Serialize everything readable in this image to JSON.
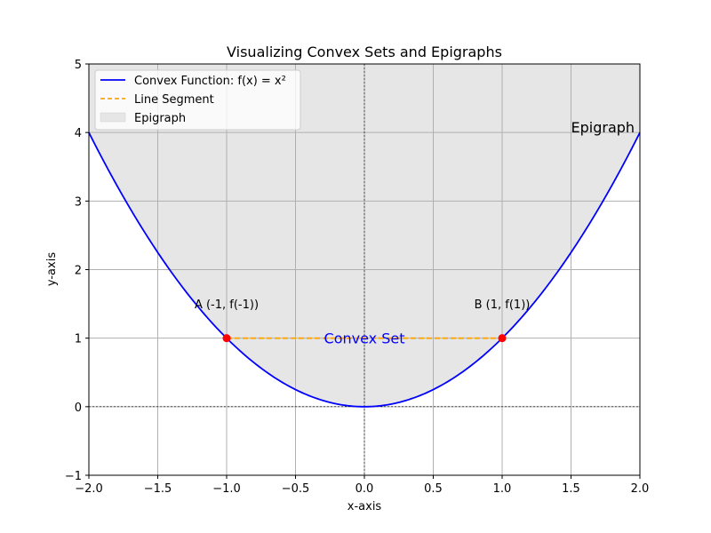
{
  "chart_data": {
    "type": "line",
    "title": "Visualizing Convex Sets and Epigraphs",
    "xlabel": "x-axis",
    "ylabel": "y-axis",
    "xlim": [
      -2,
      2
    ],
    "ylim": [
      -1,
      5
    ],
    "xticks": [
      -2.0,
      -1.5,
      -1.0,
      -0.5,
      0.0,
      0.5,
      1.0,
      1.5,
      2.0
    ],
    "xtick_labels": [
      "−2.0",
      "−1.5",
      "−1.0",
      "−0.5",
      "0.0",
      "0.5",
      "1.0",
      "1.5",
      "2.0"
    ],
    "yticks": [
      -1,
      0,
      1,
      2,
      3,
      4,
      5
    ],
    "ytick_labels": [
      "−1",
      "0",
      "1",
      "2",
      "3",
      "4",
      "5"
    ],
    "grid": true,
    "legend_position": "top-left",
    "series": [
      {
        "name": "Convex Function: f(x) = x²",
        "kind": "function",
        "formula": "x^2",
        "x_range": [
          -2,
          2
        ],
        "color": "#0000ff",
        "style": "solid"
      },
      {
        "name": "Line Segment",
        "kind": "segment",
        "x": [
          -1,
          1
        ],
        "y": [
          1,
          1
        ],
        "color": "#ffa500",
        "style": "dashed"
      },
      {
        "name": "Epigraph",
        "kind": "area",
        "region": "above f(x) up to y = 5",
        "color": "#e6e6e6"
      }
    ],
    "points": [
      {
        "label": "A (-1, f(-1))",
        "x": -1,
        "y": 1,
        "color": "#ff0000"
      },
      {
        "label": "B (1, f(1))",
        "x": 1,
        "y": 1,
        "color": "#ff0000"
      }
    ],
    "annotations": [
      {
        "text": "Convex Set",
        "x": 0,
        "y": 1,
        "color": "#0000ff"
      },
      {
        "text": "Epigraph",
        "x": 1.5,
        "y": 4,
        "color": "#000000"
      }
    ]
  }
}
